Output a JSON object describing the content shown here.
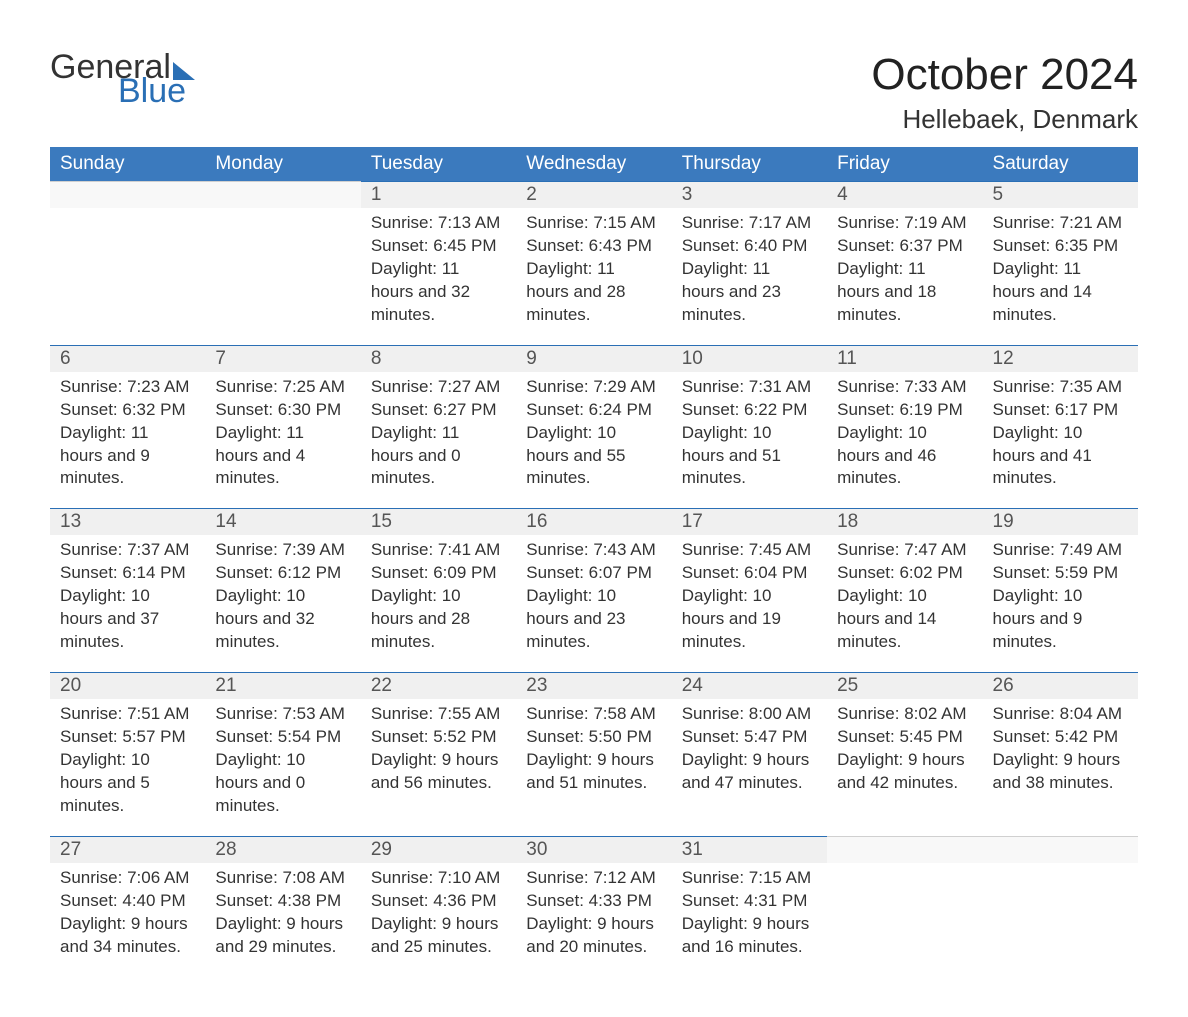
{
  "logo": {
    "text_general": "General",
    "text_blue": "Blue"
  },
  "header": {
    "month_title": "October 2024",
    "location": "Hellebaek, Denmark"
  },
  "colors": {
    "header_bg": "#3b7abe",
    "accent": "#2a6fb5",
    "daynum_bg": "#f0f0f0",
    "text": "#333333"
  },
  "week_headers": [
    "Sunday",
    "Monday",
    "Tuesday",
    "Wednesday",
    "Thursday",
    "Friday",
    "Saturday"
  ],
  "weeks": [
    [
      null,
      null,
      {
        "n": "1",
        "sr": "7:13 AM",
        "ss": "6:45 PM",
        "dh": "11",
        "dm": "32"
      },
      {
        "n": "2",
        "sr": "7:15 AM",
        "ss": "6:43 PM",
        "dh": "11",
        "dm": "28"
      },
      {
        "n": "3",
        "sr": "7:17 AM",
        "ss": "6:40 PM",
        "dh": "11",
        "dm": "23"
      },
      {
        "n": "4",
        "sr": "7:19 AM",
        "ss": "6:37 PM",
        "dh": "11",
        "dm": "18"
      },
      {
        "n": "5",
        "sr": "7:21 AM",
        "ss": "6:35 PM",
        "dh": "11",
        "dm": "14"
      }
    ],
    [
      {
        "n": "6",
        "sr": "7:23 AM",
        "ss": "6:32 PM",
        "dh": "11",
        "dm": "9"
      },
      {
        "n": "7",
        "sr": "7:25 AM",
        "ss": "6:30 PM",
        "dh": "11",
        "dm": "4"
      },
      {
        "n": "8",
        "sr": "7:27 AM",
        "ss": "6:27 PM",
        "dh": "11",
        "dm": "0"
      },
      {
        "n": "9",
        "sr": "7:29 AM",
        "ss": "6:24 PM",
        "dh": "10",
        "dm": "55"
      },
      {
        "n": "10",
        "sr": "7:31 AM",
        "ss": "6:22 PM",
        "dh": "10",
        "dm": "51"
      },
      {
        "n": "11",
        "sr": "7:33 AM",
        "ss": "6:19 PM",
        "dh": "10",
        "dm": "46"
      },
      {
        "n": "12",
        "sr": "7:35 AM",
        "ss": "6:17 PM",
        "dh": "10",
        "dm": "41"
      }
    ],
    [
      {
        "n": "13",
        "sr": "7:37 AM",
        "ss": "6:14 PM",
        "dh": "10",
        "dm": "37"
      },
      {
        "n": "14",
        "sr": "7:39 AM",
        "ss": "6:12 PM",
        "dh": "10",
        "dm": "32"
      },
      {
        "n": "15",
        "sr": "7:41 AM",
        "ss": "6:09 PM",
        "dh": "10",
        "dm": "28"
      },
      {
        "n": "16",
        "sr": "7:43 AM",
        "ss": "6:07 PM",
        "dh": "10",
        "dm": "23"
      },
      {
        "n": "17",
        "sr": "7:45 AM",
        "ss": "6:04 PM",
        "dh": "10",
        "dm": "19"
      },
      {
        "n": "18",
        "sr": "7:47 AM",
        "ss": "6:02 PM",
        "dh": "10",
        "dm": "14"
      },
      {
        "n": "19",
        "sr": "7:49 AM",
        "ss": "5:59 PM",
        "dh": "10",
        "dm": "9"
      }
    ],
    [
      {
        "n": "20",
        "sr": "7:51 AM",
        "ss": "5:57 PM",
        "dh": "10",
        "dm": "5"
      },
      {
        "n": "21",
        "sr": "7:53 AM",
        "ss": "5:54 PM",
        "dh": "10",
        "dm": "0"
      },
      {
        "n": "22",
        "sr": "7:55 AM",
        "ss": "5:52 PM",
        "dh": "9",
        "dm": "56"
      },
      {
        "n": "23",
        "sr": "7:58 AM",
        "ss": "5:50 PM",
        "dh": "9",
        "dm": "51"
      },
      {
        "n": "24",
        "sr": "8:00 AM",
        "ss": "5:47 PM",
        "dh": "9",
        "dm": "47"
      },
      {
        "n": "25",
        "sr": "8:02 AM",
        "ss": "5:45 PM",
        "dh": "9",
        "dm": "42"
      },
      {
        "n": "26",
        "sr": "8:04 AM",
        "ss": "5:42 PM",
        "dh": "9",
        "dm": "38"
      }
    ],
    [
      {
        "n": "27",
        "sr": "7:06 AM",
        "ss": "4:40 PM",
        "dh": "9",
        "dm": "34"
      },
      {
        "n": "28",
        "sr": "7:08 AM",
        "ss": "4:38 PM",
        "dh": "9",
        "dm": "29"
      },
      {
        "n": "29",
        "sr": "7:10 AM",
        "ss": "4:36 PM",
        "dh": "9",
        "dm": "25"
      },
      {
        "n": "30",
        "sr": "7:12 AM",
        "ss": "4:33 PM",
        "dh": "9",
        "dm": "20"
      },
      {
        "n": "31",
        "sr": "7:15 AM",
        "ss": "4:31 PM",
        "dh": "9",
        "dm": "16"
      },
      null,
      null
    ]
  ],
  "labels": {
    "sunrise": "Sunrise:",
    "sunset": "Sunset:",
    "daylight": "Daylight:",
    "hours": "hours",
    "and": "and",
    "minutes": "minutes."
  }
}
